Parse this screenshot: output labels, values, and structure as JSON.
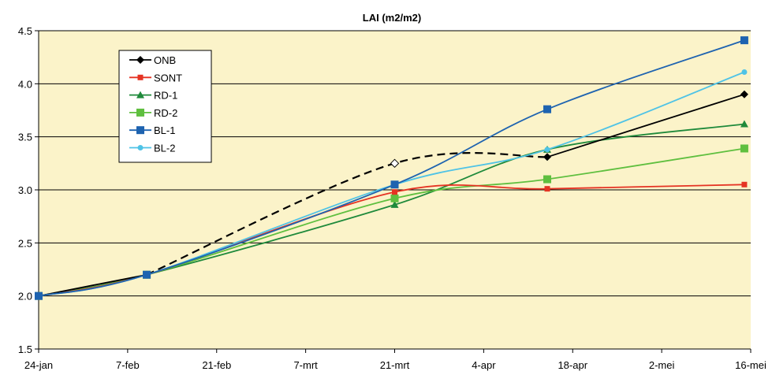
{
  "chart_data": {
    "type": "line",
    "title": "LAI (m2/m2)",
    "xlabel": "",
    "ylabel": "",
    "x_ticks": [
      "24-jan",
      "7-feb",
      "21-feb",
      "7-mrt",
      "21-mrt",
      "4-apr",
      "18-apr",
      "2-mei",
      "16-mei"
    ],
    "x_range_days": [
      0,
      112
    ],
    "ylim": [
      1.5,
      4.5
    ],
    "y_ticks": [
      "1.5",
      "2.0",
      "2.5",
      "3.0",
      "3.5",
      "4.0",
      "4.5"
    ],
    "grid": "horizontal",
    "plot_background": "#fbf3c9",
    "legend_position": "upper-left inside",
    "series": [
      {
        "name": "ONB",
        "color": "#000000",
        "marker": "diamond",
        "points": [
          [
            0,
            2.0
          ],
          [
            17,
            2.2
          ],
          [
            56,
            3.25
          ],
          [
            80,
            3.31
          ],
          [
            111,
            3.9
          ]
        ],
        "dashed_segment": [
          [
            17,
            2.2
          ],
          [
            56,
            3.25
          ],
          [
            80,
            3.31
          ]
        ]
      },
      {
        "name": "SONT",
        "color": "#e53323",
        "marker": "square-small",
        "points": [
          [
            0,
            2.0
          ],
          [
            17,
            2.2
          ],
          [
            56,
            2.98
          ],
          [
            80,
            3.01
          ],
          [
            111,
            3.05
          ]
        ]
      },
      {
        "name": "RD-1",
        "color": "#1f8a3b",
        "marker": "triangle",
        "points": [
          [
            0,
            2.0
          ],
          [
            17,
            2.2
          ],
          [
            56,
            2.86
          ],
          [
            80,
            3.38
          ],
          [
            111,
            3.62
          ]
        ]
      },
      {
        "name": "RD-2",
        "color": "#5fbf3f",
        "marker": "square",
        "points": [
          [
            0,
            2.0
          ],
          [
            17,
            2.2
          ],
          [
            56,
            2.92
          ],
          [
            80,
            3.1
          ],
          [
            111,
            3.39
          ]
        ]
      },
      {
        "name": "BL-1",
        "color": "#1e63b0",
        "marker": "square",
        "points": [
          [
            0,
            2.0
          ],
          [
            17,
            2.2
          ],
          [
            56,
            3.05
          ],
          [
            80,
            3.76
          ],
          [
            111,
            4.41
          ]
        ]
      },
      {
        "name": "BL-2",
        "color": "#4fc3e6",
        "marker": "circle",
        "points": [
          [
            0,
            2.0
          ],
          [
            17,
            2.2
          ],
          [
            56,
            3.05
          ],
          [
            80,
            3.38
          ],
          [
            111,
            4.11
          ]
        ]
      }
    ]
  }
}
